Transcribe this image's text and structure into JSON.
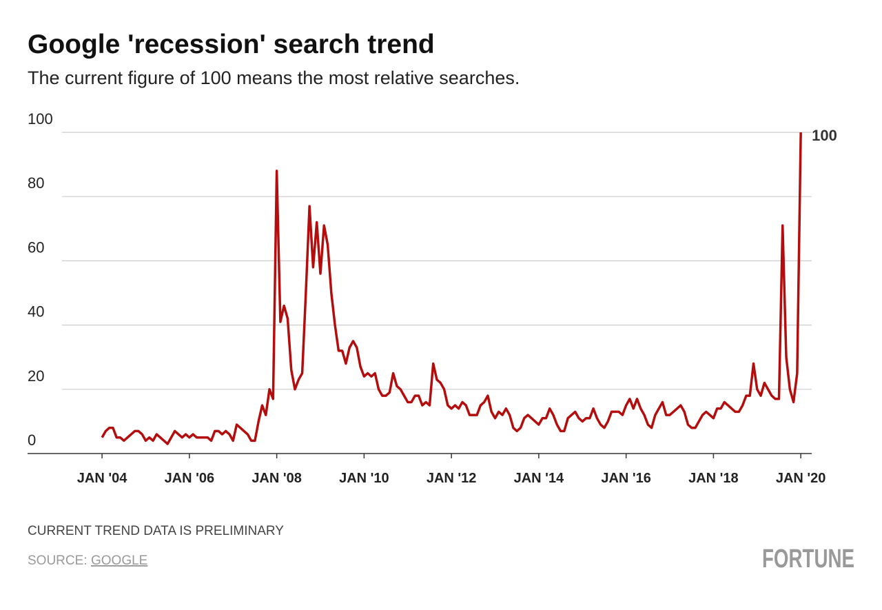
{
  "chart_data": {
    "type": "line",
    "title": "Google 'recession' search trend",
    "subtitle": "The current figure of 100 means the most relative searches.",
    "note": "CURRENT TREND DATA IS PRELIMINARY",
    "source": "SOURCE:",
    "source_link": "GOOGLE",
    "brand": "FORTUNE",
    "x": [
      "2004-01",
      "2004-02",
      "2004-03",
      "2004-04",
      "2004-05",
      "2004-06",
      "2004-07",
      "2004-08",
      "2004-09",
      "2004-10",
      "2004-11",
      "2004-12",
      "2005-01",
      "2005-02",
      "2005-03",
      "2005-04",
      "2005-05",
      "2005-06",
      "2005-07",
      "2005-08",
      "2005-09",
      "2005-10",
      "2005-11",
      "2005-12",
      "2006-01",
      "2006-02",
      "2006-03",
      "2006-04",
      "2006-05",
      "2006-06",
      "2006-07",
      "2006-08",
      "2006-09",
      "2006-10",
      "2006-11",
      "2006-12",
      "2007-01",
      "2007-02",
      "2007-03",
      "2007-04",
      "2007-05",
      "2007-06",
      "2007-07",
      "2007-08",
      "2007-09",
      "2007-10",
      "2007-11",
      "2007-12",
      "2008-01",
      "2008-02",
      "2008-03",
      "2008-04",
      "2008-05",
      "2008-06",
      "2008-07",
      "2008-08",
      "2008-09",
      "2008-10",
      "2008-11",
      "2008-12",
      "2009-01",
      "2009-02",
      "2009-03",
      "2009-04",
      "2009-05",
      "2009-06",
      "2009-07",
      "2009-08",
      "2009-09",
      "2009-10",
      "2009-11",
      "2009-12",
      "2010-01",
      "2010-02",
      "2010-03",
      "2010-04",
      "2010-05",
      "2010-06",
      "2010-07",
      "2010-08",
      "2010-09",
      "2010-10",
      "2010-11",
      "2010-12",
      "2011-01",
      "2011-02",
      "2011-03",
      "2011-04",
      "2011-05",
      "2011-06",
      "2011-07",
      "2011-08",
      "2011-09",
      "2011-10",
      "2011-11",
      "2011-12",
      "2012-01",
      "2012-02",
      "2012-03",
      "2012-04",
      "2012-05",
      "2012-06",
      "2012-07",
      "2012-08",
      "2012-09",
      "2012-10",
      "2012-11",
      "2012-12",
      "2013-01",
      "2013-02",
      "2013-03",
      "2013-04",
      "2013-05",
      "2013-06",
      "2013-07",
      "2013-08",
      "2013-09",
      "2013-10",
      "2013-11",
      "2013-12",
      "2014-01",
      "2014-02",
      "2014-03",
      "2014-04",
      "2014-05",
      "2014-06",
      "2014-07",
      "2014-08",
      "2014-09",
      "2014-10",
      "2014-11",
      "2014-12",
      "2015-01",
      "2015-02",
      "2015-03",
      "2015-04",
      "2015-05",
      "2015-06",
      "2015-07",
      "2015-08",
      "2015-09",
      "2015-10",
      "2015-11",
      "2015-12",
      "2016-01",
      "2016-02",
      "2016-03",
      "2016-04",
      "2016-05",
      "2016-06",
      "2016-07",
      "2016-08",
      "2016-09",
      "2016-10",
      "2016-11",
      "2016-12",
      "2017-01",
      "2017-02",
      "2017-03",
      "2017-04",
      "2017-05",
      "2017-06",
      "2017-07",
      "2017-08",
      "2017-09",
      "2017-10",
      "2017-11",
      "2017-12",
      "2018-01",
      "2018-02",
      "2018-03",
      "2018-04",
      "2018-05",
      "2018-06",
      "2018-07",
      "2018-08",
      "2018-09",
      "2018-10",
      "2018-11",
      "2018-12",
      "2019-01",
      "2019-02",
      "2019-03",
      "2019-04",
      "2019-05",
      "2019-06",
      "2019-07",
      "2019-08",
      "2019-09",
      "2019-10",
      "2019-11",
      "2019-12",
      "2020-01"
    ],
    "series": [
      {
        "name": "recession",
        "color": "#b30d0d",
        "values": [
          5,
          7,
          8,
          8,
          5,
          5,
          4,
          5,
          6,
          7,
          7,
          6,
          4,
          5,
          4,
          6,
          5,
          4,
          3,
          5,
          7,
          6,
          5,
          6,
          5,
          6,
          5,
          5,
          5,
          5,
          4,
          7,
          7,
          6,
          7,
          6,
          4,
          9,
          8,
          7,
          6,
          4,
          4,
          10,
          15,
          12,
          20,
          17,
          88,
          41,
          46,
          42,
          26,
          20,
          23,
          25,
          50,
          77,
          58,
          72,
          56,
          71,
          65,
          50,
          40,
          32,
          32,
          28,
          33,
          35,
          33,
          27,
          24,
          25,
          24,
          25,
          20,
          18,
          18,
          19,
          25,
          21,
          20,
          18,
          16,
          16,
          18,
          18,
          15,
          16,
          15,
          28,
          23,
          22,
          20,
          15,
          14,
          15,
          14,
          16,
          15,
          12,
          12,
          12,
          15,
          16,
          18,
          13,
          11,
          13,
          12,
          14,
          12,
          8,
          7,
          8,
          11,
          12,
          11,
          10,
          9,
          11,
          11,
          14,
          12,
          9,
          7,
          7,
          11,
          12,
          13,
          11,
          10,
          11,
          11,
          14,
          11,
          9,
          8,
          10,
          13,
          13,
          13,
          12,
          15,
          17,
          14,
          17,
          14,
          12,
          9,
          8,
          12,
          14,
          16,
          12,
          12,
          13,
          14,
          15,
          13,
          9,
          8,
          8,
          10,
          12,
          13,
          12,
          11,
          14,
          14,
          16,
          15,
          14,
          13,
          13,
          15,
          18,
          18,
          28,
          20,
          18,
          22,
          20,
          18,
          17,
          17,
          71,
          30,
          20,
          16,
          25,
          100
        ]
      }
    ],
    "xlim": [
      "2003-02",
      "2020-04"
    ],
    "xticks": [
      {
        "value": "2004-01",
        "label": "JAN '04"
      },
      {
        "value": "2006-01",
        "label": "JAN '06"
      },
      {
        "value": "2008-01",
        "label": "JAN '08"
      },
      {
        "value": "2010-01",
        "label": "JAN '10"
      },
      {
        "value": "2012-01",
        "label": "JAN '12"
      },
      {
        "value": "2014-01",
        "label": "JAN '14"
      },
      {
        "value": "2016-01",
        "label": "JAN '16"
      },
      {
        "value": "2018-01",
        "label": "JAN '18"
      },
      {
        "value": "2020-01",
        "label": "JAN '20"
      }
    ],
    "ylim": [
      0,
      100
    ],
    "yticks": [
      0,
      20,
      40,
      60,
      80,
      100
    ],
    "grid": true
  }
}
